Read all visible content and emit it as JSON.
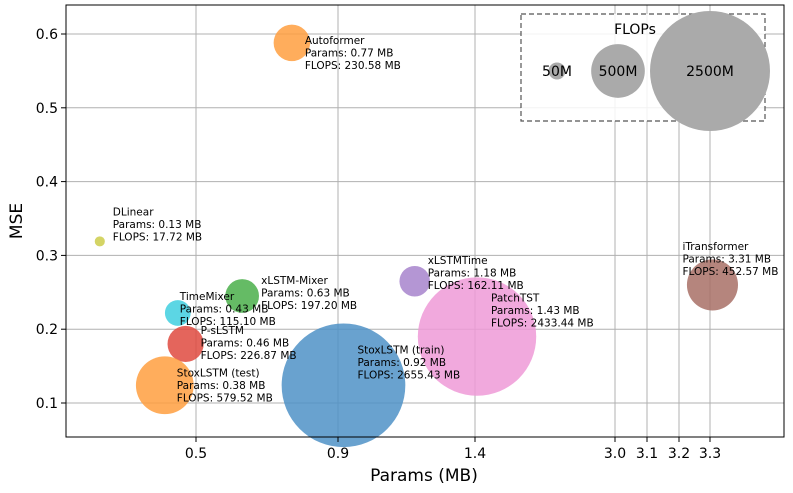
{
  "chart_data": {
    "type": "scatter",
    "xlabel": "Params (MB)",
    "ylabel": "MSE",
    "x_ticks": [
      {
        "label": "0.5",
        "value": 0.5
      },
      {
        "label": "0.9",
        "value": 0.9
      },
      {
        "label": "1.4",
        "value": 1.4
      },
      {
        "label": "3.0",
        "value": 3.0
      },
      {
        "label": "3.1",
        "value": 3.1
      },
      {
        "label": "3.2",
        "value": 3.2
      },
      {
        "label": "3.3",
        "value": 3.3
      }
    ],
    "y_ticks": [
      0.1,
      0.2,
      0.3,
      0.4,
      0.5,
      0.6
    ],
    "grid": true,
    "points": [
      {
        "name": "Autoformer",
        "params": 0.77,
        "flops": 230.58,
        "mse": 0.588,
        "color": "#ff9f40",
        "lines": [
          "Autoformer",
          "Params: 0.77 MB",
          "FLOPS: 230.58 MB"
        ]
      },
      {
        "name": "DLinear",
        "params": 0.13,
        "flops": 17.72,
        "mse": 0.319,
        "color": "#cdcd4a",
        "lines": [
          "DLinear",
          "Params: 0.13 MB",
          "FLOPS: 17.72 MB"
        ]
      },
      {
        "name": "xLSTMTime",
        "params": 1.18,
        "flops": 162.11,
        "mse": 0.265,
        "color": "#a784cc",
        "lines": [
          "xLSTMTime",
          "Params: 1.18 MB",
          "FLOPS: 162.11 MB"
        ]
      },
      {
        "name": "iTransformer",
        "params": 3.31,
        "flops": 452.57,
        "mse": 0.26,
        "color": "#a87066",
        "lines": [
          "iTransformer",
          "Params: 3.31 MB",
          "FLOPS: 452.57 MB"
        ]
      },
      {
        "name": "xLSTM-Mixer",
        "params": 0.63,
        "flops": 197.2,
        "mse": 0.245,
        "color": "#4aaf4a",
        "lines": [
          "xLSTM-Mixer",
          "Params: 0.63 MB",
          "FLOPS: 197.20 MB"
        ]
      },
      {
        "name": "TimeMixer",
        "params": 0.43,
        "flops": 115.1,
        "mse": 0.222,
        "color": "#3fcfdf",
        "lines": [
          "TimeMixer",
          "Params: 0.43 MB",
          "FLOPS: 115.10 MB"
        ]
      },
      {
        "name": "P-sLSTM",
        "params": 0.46,
        "flops": 226.87,
        "mse": 0.18,
        "color": "#df4a40",
        "lines": [
          "P-sLSTM",
          "Params: 0.46 MB",
          "FLOPS: 226.87 MB"
        ]
      },
      {
        "name": "PatchTST",
        "params": 1.43,
        "flops": 2433.44,
        "mse": 0.19,
        "color": "#ef9ad7",
        "lines": [
          "PatchTST",
          "Params: 1.43 MB",
          "FLOPS: 2433.44 MB"
        ]
      },
      {
        "name": "StoxLSTM (test)",
        "params": 0.38,
        "flops": 579.52,
        "mse": 0.124,
        "color": "#ff9f40",
        "lines": [
          "StoxLSTM (test)",
          "Params: 0.38 MB",
          "FLOPS: 579.52 MB"
        ]
      },
      {
        "name": "StoxLSTM (train)",
        "params": 0.92,
        "flops": 2655.43,
        "mse": 0.124,
        "color": "#4f92c7",
        "lines": [
          "StoxLSTM (train)",
          "Params: 0.92 MB",
          "FLOPS: 2655.43 MB"
        ]
      }
    ],
    "legend": {
      "title": "FLOPs",
      "position": "top-right",
      "entries": [
        {
          "label": "50M",
          "flops": 50
        },
        {
          "label": "500M",
          "flops": 500
        },
        {
          "label": "2500M",
          "flops": 2500
        }
      ],
      "color": "#aaaaaa"
    }
  }
}
